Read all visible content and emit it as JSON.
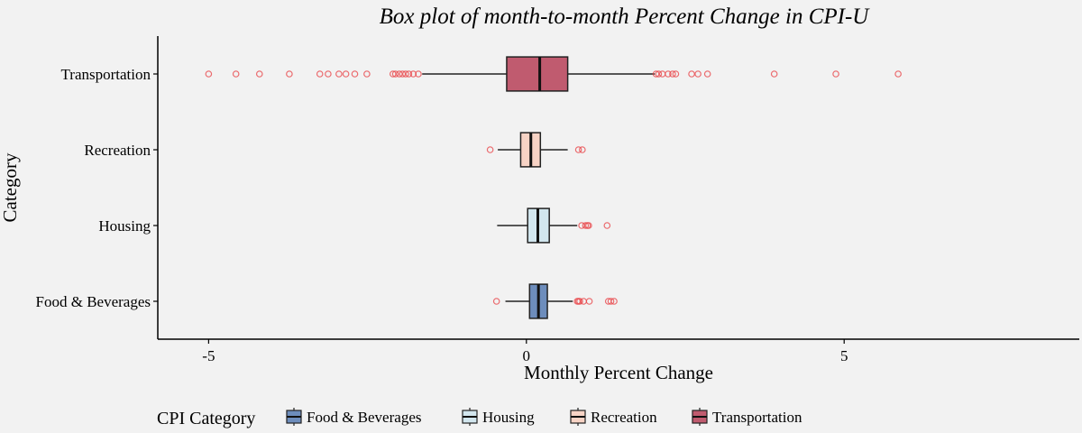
{
  "chart_data": {
    "type": "boxplot",
    "title": "Box plot of month-to-month Percent Change in CPI-U",
    "xlabel": "Monthly Percent Change",
    "ylabel": "Category",
    "xlim": [
      -5.8,
      8.7
    ],
    "x_ticks": [
      {
        "value": -5,
        "label": "-5"
      },
      {
        "value": 0,
        "label": "0"
      },
      {
        "value": 5,
        "label": "5"
      }
    ],
    "grid": false,
    "legend_title": "CPI Category",
    "legend_position": "bottom",
    "categories": [
      "Food & Beverages",
      "Housing",
      "Recreation",
      "Transportation"
    ],
    "series": [
      {
        "name": "Food & Beverages",
        "color": "#6d8dbc",
        "whisker_low": -0.33,
        "q1": 0.05,
        "median": 0.19,
        "q3": 0.33,
        "whisker_high": 0.73,
        "outliers": [
          -0.47,
          0.8,
          0.82,
          0.84,
          0.9,
          0.99,
          1.29,
          1.33,
          1.38
        ]
      },
      {
        "name": "Housing",
        "color": "#d2e6ee",
        "whisker_low": -0.46,
        "q1": 0.02,
        "median": 0.18,
        "q3": 0.36,
        "whisker_high": 0.8,
        "outliers": [
          0.87,
          0.93,
          0.96,
          0.98,
          1.27
        ]
      },
      {
        "name": "Recreation",
        "color": "#f7d3c5",
        "whisker_low": -0.45,
        "q1": -0.09,
        "median": 0.07,
        "q3": 0.22,
        "whisker_high": 0.65,
        "outliers": [
          -0.57,
          0.82,
          0.88
        ]
      },
      {
        "name": "Transportation",
        "color": "#c05b6f",
        "whisker_low": -1.64,
        "q1": -0.31,
        "median": 0.21,
        "q3": 0.65,
        "whisker_high": 2.02,
        "outliers": [
          -5.0,
          -4.57,
          -4.2,
          -3.73,
          -3.25,
          -3.12,
          -2.95,
          -2.84,
          -2.7,
          -2.51,
          -2.1,
          -2.06,
          -2.0,
          -1.95,
          -1.9,
          -1.85,
          -1.78,
          -1.7,
          2.04,
          2.08,
          2.14,
          2.23,
          2.3,
          2.35,
          2.6,
          2.7,
          2.85,
          3.9,
          4.87,
          5.85
        ]
      }
    ]
  },
  "style": {
    "outlier_color": "#e8474b",
    "line_color": "#222222"
  }
}
